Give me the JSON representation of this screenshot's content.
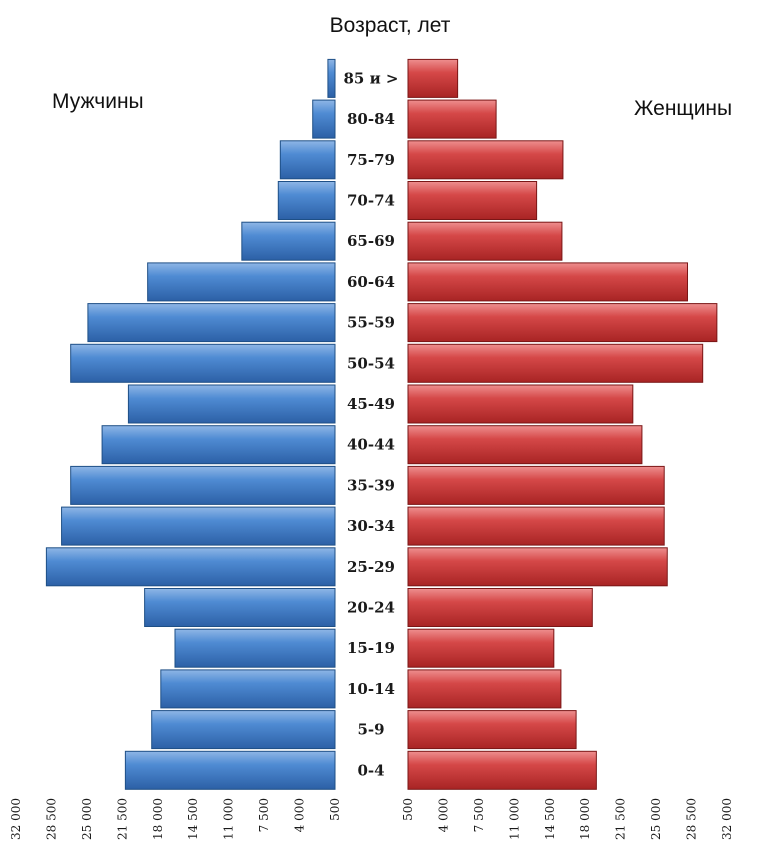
{
  "chart_data": {
    "type": "bar",
    "orientation": "horizontal-pyramid",
    "title": "Возраст, лет",
    "categories": [
      "0-4",
      "5-9",
      "10-14",
      "15-19",
      "20-24",
      "25-29",
      "30-34",
      "35-39",
      "40-44",
      "45-49",
      "50-54",
      "55-59",
      "60-64",
      "65-69",
      "70-74",
      "75-79",
      "80-84",
      "85 и >"
    ],
    "series": [
      {
        "name": "Мужчины",
        "side": "left",
        "color": "#3a78c3",
        "values": [
          21200,
          18600,
          17700,
          16300,
          19300,
          29000,
          27500,
          26600,
          23500,
          20900,
          26600,
          24900,
          19000,
          9700,
          6100,
          5900,
          2700,
          1200
        ]
      },
      {
        "name": "Женщины",
        "side": "right",
        "color": "#c93131",
        "values": [
          19100,
          17100,
          15600,
          14900,
          18700,
          26100,
          25800,
          25800,
          23600,
          22700,
          29600,
          31000,
          28100,
          15700,
          13200,
          15800,
          9200,
          5400
        ]
      }
    ],
    "x_ticks_left": [
      "32 000",
      "28 500",
      "25 000",
      "21 500",
      "18 000",
      "14 500",
      "11 000",
      "7 500",
      "4 000",
      "500"
    ],
    "x_ticks_right": [
      "500",
      "4 000",
      "7 500",
      "11 000",
      "14 500",
      "18 000",
      "21 500",
      "25 000",
      "28 500",
      "32 000"
    ],
    "xlim": [
      500,
      32000
    ],
    "grid": false,
    "legend": "none"
  }
}
